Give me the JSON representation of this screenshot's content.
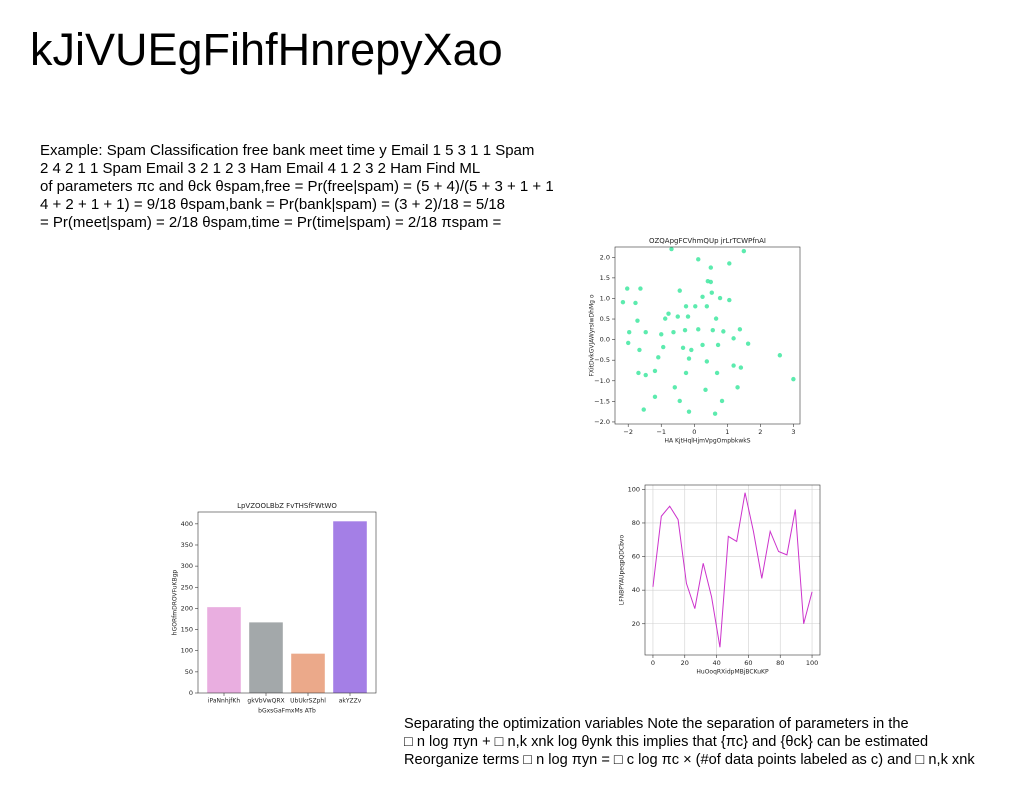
{
  "title": "kJiVUEgFihfHnrepyXao",
  "paragraphs": [
    [
      "Example: Spam Classification free bank meet time y Email 1 5 3 1 1 Spam",
      "2 4 2 1 1 Spam Email 3 2 1 2 3 Ham Email 4 1 2 3 2 Ham Find ML",
      "of parameters πc and θck θspam,free = Pr(free|spam) = (5 + 4)/(5 + 3 + 1 + 1",
      "4 + 2 + 1 + 1) = 9/18 θspam,bank = Pr(bank|spam) = (3 + 2)/18 = 5/18",
      "= Pr(meet|spam) = 2/18 θspam,time = Pr(time|spam) = 2/18 πspam ="
    ],
    [
      "Separating the optimization variables Note the separation of parameters in the",
      "□ n log πyn + □ n,k xnk log θynk this implies that {πc} and {θck} can be estimated",
      "Reorganize terms □ n log πyn = □ c log πc × (#of data points labeled as c) and □ n,k xnk"
    ]
  ],
  "chart_data": [
    {
      "type": "scatter",
      "title": "OZQApgFCVhmQUp jrLrTCWPfnAI",
      "x_label": "HA KjtHqlHjmVpgOmpbkwkS",
      "y_label": "FXitDvkGVJAWyrsIwDhMg o",
      "color": "#3fe8a0",
      "x": [
        -0.69,
        0.12,
        1.5,
        1.06,
        0.5,
        0.41,
        0.5,
        0.53,
        0.78,
        1.06,
        0.25,
        -0.44,
        -2.03,
        -1.63,
        -2.16,
        -1.78,
        -0.25,
        0.03,
        0.38,
        -0.78,
        -0.5,
        -0.88,
        -0.19,
        -1.72,
        0.66,
        -1.97,
        -1.47,
        -1.0,
        -0.63,
        -0.28,
        0.12,
        0.56,
        0.88,
        1.38,
        1.19,
        1.63,
        -2.0,
        -1.66,
        -0.94,
        -0.34,
        -0.09,
        0.25,
        0.72,
        -1.09,
        -0.16,
        0.38,
        1.19,
        2.59,
        -1.69,
        -1.47,
        -1.19,
        -0.25,
        0.69,
        1.41,
        3.0,
        -0.59,
        0.34,
        1.31,
        -1.19,
        -0.44,
        0.84,
        -1.53,
        -0.16,
        0.63
      ],
      "values": [
        2.2,
        1.95,
        2.15,
        1.85,
        1.75,
        1.42,
        1.4,
        1.14,
        1.01,
        0.96,
        1.04,
        1.19,
        1.24,
        1.24,
        0.91,
        0.89,
        0.81,
        0.81,
        0.81,
        0.63,
        0.56,
        0.51,
        0.56,
        0.46,
        0.51,
        0.18,
        0.18,
        0.13,
        0.18,
        0.23,
        0.25,
        0.23,
        0.2,
        0.25,
        0.03,
        -0.1,
        -0.08,
        -0.25,
        -0.18,
        -0.2,
        -0.25,
        -0.13,
        -0.13,
        -0.43,
        -0.46,
        -0.53,
        -0.63,
        -0.38,
        -0.81,
        -0.86,
        -0.76,
        -0.81,
        -0.81,
        -0.68,
        -0.96,
        -1.16,
        -1.22,
        -1.16,
        -1.39,
        -1.49,
        -1.49,
        -1.7,
        -1.75,
        -1.8
      ],
      "xlim": [
        -2.4,
        3.2
      ],
      "xticks": [
        {
          "value": -2,
          "label": "−2"
        },
        {
          "value": -1,
          "label": "−1"
        },
        0,
        1,
        2,
        3
      ],
      "ylim": [
        -2.05,
        2.25
      ],
      "yticks": [
        {
          "value": -2,
          "label": "−2.0"
        },
        {
          "value": -1.5,
          "label": "−1.5"
        },
        {
          "value": -1,
          "label": "−1.0"
        },
        {
          "value": -0.5,
          "label": "−0.5"
        },
        {
          "value": 0,
          "label": "0.0"
        },
        0.5,
        {
          "value": 1,
          "label": "1.0"
        },
        1.5,
        {
          "value": 2,
          "label": "2.0"
        }
      ],
      "grid": false
    },
    {
      "type": "bar",
      "title": "LpVZOOLBbZ FvTHSfFWtWO",
      "x_label": "bGxsGaFmxMs ATb",
      "y_label": "hGORfmDROVFuKBgp",
      "categories": [
        "iPaNnhjfKh",
        "gkVbVwQRX",
        "UbUkrSZphl",
        "akYZZv"
      ],
      "values": [
        203,
        167,
        93,
        406
      ],
      "colors": [
        "#e9aee0",
        "#a3a8aa",
        "#eba98a",
        "#a47fe6"
      ],
      "ylim": [
        0,
        428
      ],
      "yticks": [
        0,
        50,
        100,
        150,
        200,
        250,
        300,
        350,
        400
      ],
      "grid": false
    },
    {
      "type": "line",
      "x_label": "HuOoqRXidpMBjBCKuKP",
      "y_label": "LFNBPYAUpeqpQDCbvo",
      "color": "#cc33cc",
      "x": [
        0,
        5.26,
        10.53,
        15.79,
        21.05,
        26.32,
        31.58,
        36.84,
        42.11,
        47.37,
        52.63,
        57.89,
        63.16,
        68.42,
        73.68,
        78.95,
        84.21,
        89.47,
        94.74,
        100
      ],
      "values": [
        42,
        84,
        90,
        82,
        44,
        29,
        56,
        36,
        6,
        72,
        69,
        98,
        75,
        47,
        75,
        63,
        61,
        88,
        20,
        39
      ],
      "xlim": [
        -5,
        105
      ],
      "xticks": [
        0,
        20,
        40,
        60,
        80,
        100
      ],
      "ylim": [
        1.4,
        102.6
      ],
      "yticks": [
        20,
        40,
        60,
        80,
        100
      ],
      "grid": true
    }
  ]
}
